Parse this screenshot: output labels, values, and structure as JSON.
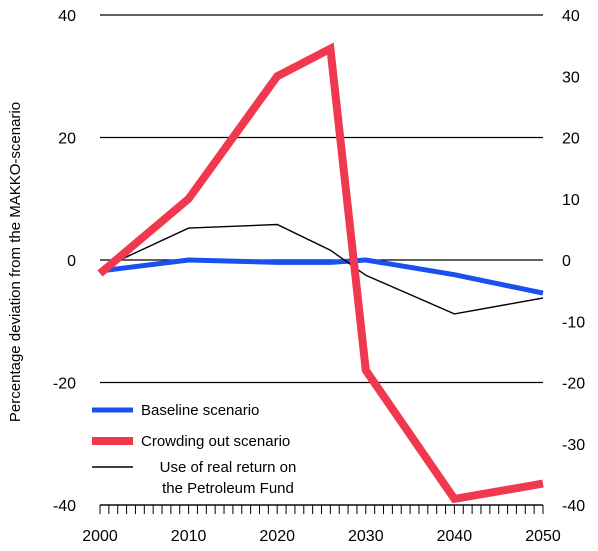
{
  "chart_data": {
    "type": "line",
    "ylabel": "Percentage deviation from  the MAKKO-scenario",
    "x_ticks": [
      2000,
      2010,
      2020,
      2030,
      2040,
      2050
    ],
    "xlim": [
      2000,
      2050
    ],
    "left_axis": {
      "ylim": [
        -40,
        40
      ],
      "ticks": [
        -40,
        -20,
        0,
        20,
        40
      ]
    },
    "right_axis": {
      "ylim": [
        -40,
        40
      ],
      "ticks": [
        -40,
        -30,
        -20,
        -10,
        0,
        10,
        20,
        30,
        40
      ]
    },
    "grid": "horizontal at left-axis ticks",
    "legend_position": "bottom-left",
    "series": [
      {
        "name": "Baseline scenario",
        "color": "#1a4ff0",
        "x": [
          2000,
          2010,
          2020,
          2026,
          2030,
          2040,
          2050
        ],
        "values": [
          -1.8,
          0,
          -0.4,
          -0.4,
          0,
          -2.4,
          -5.4
        ]
      },
      {
        "name": "Crowding out scenario",
        "color": "#f0394f",
        "x": [
          2000,
          2010,
          2020,
          2026,
          2030,
          2040,
          2050
        ],
        "values": [
          -2.2,
          10,
          30,
          34.5,
          -18,
          -39,
          -36.5
        ]
      },
      {
        "name": "Use of real return on\nthe Petroleum Fund",
        "color": "#000000",
        "x": [
          2000,
          2010,
          2020,
          2026,
          2030,
          2040,
          2050
        ],
        "values": [
          -1.5,
          5.2,
          5.8,
          1.6,
          -2.5,
          -8.8,
          -6.2
        ]
      }
    ]
  }
}
